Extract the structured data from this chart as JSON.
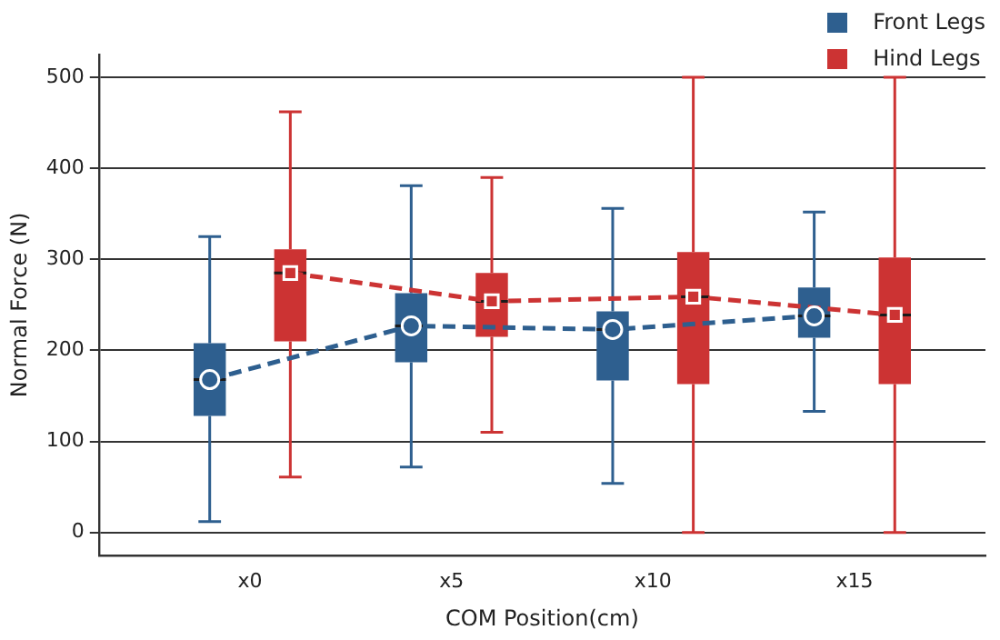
{
  "chart_data": {
    "type": "box",
    "xlabel": "COM Position(cm)",
    "ylabel": "Normal Force (N)",
    "categories": [
      "x0",
      "x5",
      "x10",
      "x15"
    ],
    "ylim": [
      -25,
      525
    ],
    "yticks": [
      0,
      100,
      200,
      300,
      400,
      500
    ],
    "grid": "y",
    "legend": "top right",
    "series": [
      {
        "name": "Front Legs",
        "color": "#2e5f8f",
        "boxes": [
          {
            "low": 12,
            "q1": 128,
            "median": 168,
            "q3": 208,
            "high": 325
          },
          {
            "low": 72,
            "q1": 187,
            "median": 227,
            "q3": 263,
            "high": 381
          },
          {
            "low": 54,
            "q1": 167,
            "median": 223,
            "q3": 243,
            "high": 356
          },
          {
            "low": 133,
            "q1": 214,
            "median": 238,
            "q3": 269,
            "high": 352
          }
        ]
      },
      {
        "name": "Hind Legs",
        "color": "#cc3333",
        "boxes": [
          {
            "low": 61,
            "q1": 210,
            "median": 285,
            "q3": 311,
            "high": 462
          },
          {
            "low": 110,
            "q1": 215,
            "median": 254,
            "q3": 285,
            "high": 390
          },
          {
            "low": 0,
            "q1": 163,
            "median": 259,
            "q3": 308,
            "high": 500
          },
          {
            "low": 0,
            "q1": 163,
            "median": 239,
            "q3": 302,
            "high": 500
          }
        ]
      },
      {
        "type": "line",
        "color": "#2e5f8f",
        "values": [
          168,
          227,
          223,
          238
        ],
        "marker": "circle",
        "line_style": "dashed"
      },
      {
        "type": "line",
        "color": "#cc3333",
        "values": [
          285,
          254,
          259,
          239
        ],
        "marker": "square",
        "line_style": "dashed"
      }
    ]
  }
}
